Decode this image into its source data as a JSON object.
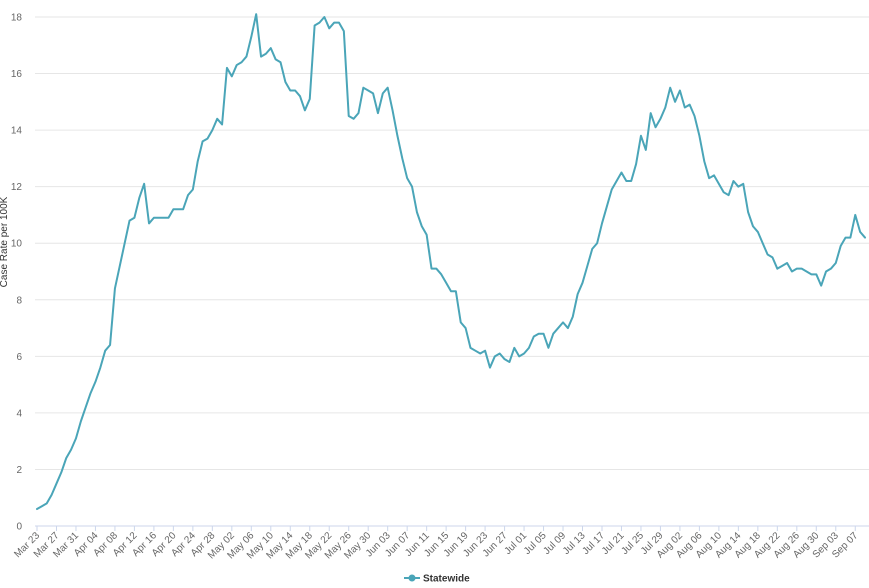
{
  "chart_data": {
    "type": "line",
    "ylabel": "Case Rate per 100K",
    "ylim": [
      0,
      18
    ],
    "y_ticks": [
      "0",
      "2",
      "4",
      "6",
      "8",
      "10",
      "12",
      "14",
      "16",
      "18"
    ],
    "x_tick_labels": [
      "Mar 23",
      "Mar 27",
      "Mar 31",
      "Apr 04",
      "Apr 08",
      "Apr 12",
      "Apr 16",
      "Apr 20",
      "Apr 24",
      "Apr 28",
      "May 02",
      "May 06",
      "May 10",
      "May 14",
      "May 18",
      "May 22",
      "May 26",
      "May 30",
      "Jun 03",
      "Jun 07",
      "Jun 11",
      "Jun 15",
      "Jun 19",
      "Jun 23",
      "Jun 27",
      "Jul 01",
      "Jul 05",
      "Jul 09",
      "Jul 13",
      "Jul 17",
      "Jul 21",
      "Jul 25",
      "Jul 29",
      "Aug 02",
      "Aug 06",
      "Aug 10",
      "Aug 14",
      "Aug 18",
      "Aug 22",
      "Aug 26",
      "Aug 30",
      "Sep 03",
      "Sep 07"
    ],
    "grid": true,
    "legend_position": "bottom",
    "colors": {
      "series": "#4aa5b8",
      "grid": "#e6e6e6",
      "axis": "#ccd6eb"
    },
    "series": [
      {
        "name": "Statewide",
        "x_start": "Mar 23",
        "values": [
          0.6,
          0.7,
          0.8,
          1.1,
          1.5,
          1.9,
          2.4,
          2.7,
          3.1,
          3.7,
          4.2,
          4.7,
          5.1,
          5.6,
          6.2,
          6.4,
          8.4,
          9.2,
          10.0,
          10.8,
          10.9,
          11.6,
          12.1,
          10.7,
          10.9,
          10.9,
          10.9,
          10.9,
          11.2,
          11.2,
          11.2,
          11.7,
          11.9,
          12.9,
          13.6,
          13.7,
          14.0,
          14.4,
          14.2,
          16.2,
          15.9,
          16.3,
          16.4,
          16.6,
          17.3,
          18.1,
          16.6,
          16.7,
          16.9,
          16.5,
          16.4,
          15.7,
          15.4,
          15.4,
          15.2,
          14.7,
          15.1,
          17.7,
          17.8,
          18.0,
          17.6,
          17.8,
          17.8,
          17.5,
          14.5,
          14.4,
          14.6,
          15.5,
          15.4,
          15.3,
          14.6,
          15.3,
          15.5,
          14.7,
          13.8,
          13.0,
          12.3,
          12.0,
          11.1,
          10.6,
          10.3,
          9.1,
          9.1,
          8.9,
          8.6,
          8.3,
          8.3,
          7.2,
          7.0,
          6.3,
          6.2,
          6.1,
          6.2,
          5.6,
          6.0,
          6.1,
          5.9,
          5.8,
          6.3,
          6.0,
          6.1,
          6.3,
          6.7,
          6.8,
          6.8,
          6.3,
          6.8,
          7.0,
          7.2,
          7.0,
          7.4,
          8.2,
          8.6,
          9.2,
          9.8,
          10.0,
          10.7,
          11.3,
          11.9,
          12.2,
          12.5,
          12.2,
          12.2,
          12.8,
          13.8,
          13.3,
          14.6,
          14.1,
          14.4,
          14.8,
          15.5,
          15.0,
          15.4,
          14.8,
          14.9,
          14.5,
          13.8,
          12.9,
          12.3,
          12.4,
          12.1,
          11.8,
          11.7,
          12.2,
          12.0,
          12.1,
          11.1,
          10.6,
          10.4,
          10.0,
          9.6,
          9.5,
          9.1,
          9.2,
          9.3,
          9.0,
          9.1,
          9.1,
          9.0,
          8.9,
          8.9,
          8.5,
          9.0,
          9.1,
          9.3,
          9.9,
          10.2,
          10.2,
          11.0,
          10.4,
          10.2
        ]
      }
    ]
  }
}
